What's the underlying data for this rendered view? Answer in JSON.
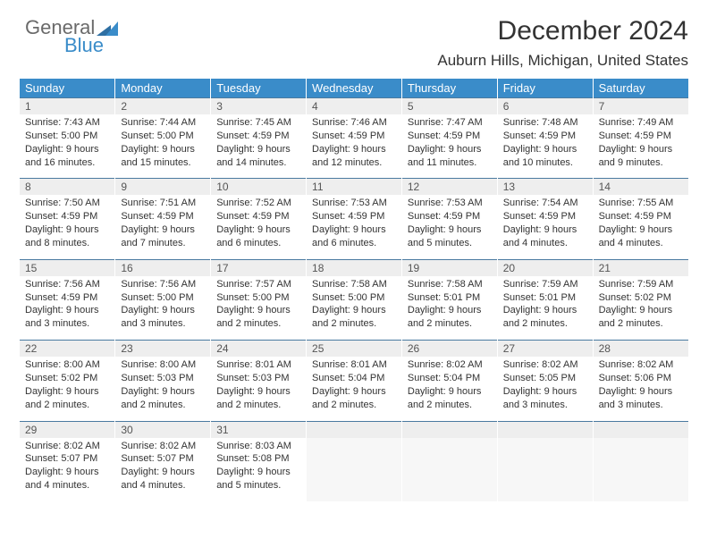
{
  "logo": {
    "text1": "General",
    "text2": "Blue",
    "accent": "#3a8cc9",
    "grey": "#6a6a6a"
  },
  "title": "December 2024",
  "location": "Auburn Hills, Michigan, United States",
  "header_bg": "#3a8cc9",
  "daynum_bg": "#eeeeee",
  "border_color": "#4a7aa0",
  "days": [
    "Sunday",
    "Monday",
    "Tuesday",
    "Wednesday",
    "Thursday",
    "Friday",
    "Saturday"
  ],
  "weeks": [
    {
      "nums": [
        "1",
        "2",
        "3",
        "4",
        "5",
        "6",
        "7"
      ],
      "cells": [
        {
          "sunrise": "Sunrise: 7:43 AM",
          "sunset": "Sunset: 5:00 PM",
          "d1": "Daylight: 9 hours",
          "d2": "and 16 minutes."
        },
        {
          "sunrise": "Sunrise: 7:44 AM",
          "sunset": "Sunset: 5:00 PM",
          "d1": "Daylight: 9 hours",
          "d2": "and 15 minutes."
        },
        {
          "sunrise": "Sunrise: 7:45 AM",
          "sunset": "Sunset: 4:59 PM",
          "d1": "Daylight: 9 hours",
          "d2": "and 14 minutes."
        },
        {
          "sunrise": "Sunrise: 7:46 AM",
          "sunset": "Sunset: 4:59 PM",
          "d1": "Daylight: 9 hours",
          "d2": "and 12 minutes."
        },
        {
          "sunrise": "Sunrise: 7:47 AM",
          "sunset": "Sunset: 4:59 PM",
          "d1": "Daylight: 9 hours",
          "d2": "and 11 minutes."
        },
        {
          "sunrise": "Sunrise: 7:48 AM",
          "sunset": "Sunset: 4:59 PM",
          "d1": "Daylight: 9 hours",
          "d2": "and 10 minutes."
        },
        {
          "sunrise": "Sunrise: 7:49 AM",
          "sunset": "Sunset: 4:59 PM",
          "d1": "Daylight: 9 hours",
          "d2": "and 9 minutes."
        }
      ]
    },
    {
      "nums": [
        "8",
        "9",
        "10",
        "11",
        "12",
        "13",
        "14"
      ],
      "cells": [
        {
          "sunrise": "Sunrise: 7:50 AM",
          "sunset": "Sunset: 4:59 PM",
          "d1": "Daylight: 9 hours",
          "d2": "and 8 minutes."
        },
        {
          "sunrise": "Sunrise: 7:51 AM",
          "sunset": "Sunset: 4:59 PM",
          "d1": "Daylight: 9 hours",
          "d2": "and 7 minutes."
        },
        {
          "sunrise": "Sunrise: 7:52 AM",
          "sunset": "Sunset: 4:59 PM",
          "d1": "Daylight: 9 hours",
          "d2": "and 6 minutes."
        },
        {
          "sunrise": "Sunrise: 7:53 AM",
          "sunset": "Sunset: 4:59 PM",
          "d1": "Daylight: 9 hours",
          "d2": "and 6 minutes."
        },
        {
          "sunrise": "Sunrise: 7:53 AM",
          "sunset": "Sunset: 4:59 PM",
          "d1": "Daylight: 9 hours",
          "d2": "and 5 minutes."
        },
        {
          "sunrise": "Sunrise: 7:54 AM",
          "sunset": "Sunset: 4:59 PM",
          "d1": "Daylight: 9 hours",
          "d2": "and 4 minutes."
        },
        {
          "sunrise": "Sunrise: 7:55 AM",
          "sunset": "Sunset: 4:59 PM",
          "d1": "Daylight: 9 hours",
          "d2": "and 4 minutes."
        }
      ]
    },
    {
      "nums": [
        "15",
        "16",
        "17",
        "18",
        "19",
        "20",
        "21"
      ],
      "cells": [
        {
          "sunrise": "Sunrise: 7:56 AM",
          "sunset": "Sunset: 4:59 PM",
          "d1": "Daylight: 9 hours",
          "d2": "and 3 minutes."
        },
        {
          "sunrise": "Sunrise: 7:56 AM",
          "sunset": "Sunset: 5:00 PM",
          "d1": "Daylight: 9 hours",
          "d2": "and 3 minutes."
        },
        {
          "sunrise": "Sunrise: 7:57 AM",
          "sunset": "Sunset: 5:00 PM",
          "d1": "Daylight: 9 hours",
          "d2": "and 2 minutes."
        },
        {
          "sunrise": "Sunrise: 7:58 AM",
          "sunset": "Sunset: 5:00 PM",
          "d1": "Daylight: 9 hours",
          "d2": "and 2 minutes."
        },
        {
          "sunrise": "Sunrise: 7:58 AM",
          "sunset": "Sunset: 5:01 PM",
          "d1": "Daylight: 9 hours",
          "d2": "and 2 minutes."
        },
        {
          "sunrise": "Sunrise: 7:59 AM",
          "sunset": "Sunset: 5:01 PM",
          "d1": "Daylight: 9 hours",
          "d2": "and 2 minutes."
        },
        {
          "sunrise": "Sunrise: 7:59 AM",
          "sunset": "Sunset: 5:02 PM",
          "d1": "Daylight: 9 hours",
          "d2": "and 2 minutes."
        }
      ]
    },
    {
      "nums": [
        "22",
        "23",
        "24",
        "25",
        "26",
        "27",
        "28"
      ],
      "cells": [
        {
          "sunrise": "Sunrise: 8:00 AM",
          "sunset": "Sunset: 5:02 PM",
          "d1": "Daylight: 9 hours",
          "d2": "and 2 minutes."
        },
        {
          "sunrise": "Sunrise: 8:00 AM",
          "sunset": "Sunset: 5:03 PM",
          "d1": "Daylight: 9 hours",
          "d2": "and 2 minutes."
        },
        {
          "sunrise": "Sunrise: 8:01 AM",
          "sunset": "Sunset: 5:03 PM",
          "d1": "Daylight: 9 hours",
          "d2": "and 2 minutes."
        },
        {
          "sunrise": "Sunrise: 8:01 AM",
          "sunset": "Sunset: 5:04 PM",
          "d1": "Daylight: 9 hours",
          "d2": "and 2 minutes."
        },
        {
          "sunrise": "Sunrise: 8:02 AM",
          "sunset": "Sunset: 5:04 PM",
          "d1": "Daylight: 9 hours",
          "d2": "and 2 minutes."
        },
        {
          "sunrise": "Sunrise: 8:02 AM",
          "sunset": "Sunset: 5:05 PM",
          "d1": "Daylight: 9 hours",
          "d2": "and 3 minutes."
        },
        {
          "sunrise": "Sunrise: 8:02 AM",
          "sunset": "Sunset: 5:06 PM",
          "d1": "Daylight: 9 hours",
          "d2": "and 3 minutes."
        }
      ]
    },
    {
      "nums": [
        "29",
        "30",
        "31",
        "",
        "",
        "",
        ""
      ],
      "cells": [
        {
          "sunrise": "Sunrise: 8:02 AM",
          "sunset": "Sunset: 5:07 PM",
          "d1": "Daylight: 9 hours",
          "d2": "and 4 minutes."
        },
        {
          "sunrise": "Sunrise: 8:02 AM",
          "sunset": "Sunset: 5:07 PM",
          "d1": "Daylight: 9 hours",
          "d2": "and 4 minutes."
        },
        {
          "sunrise": "Sunrise: 8:03 AM",
          "sunset": "Sunset: 5:08 PM",
          "d1": "Daylight: 9 hours",
          "d2": "and 5 minutes."
        },
        null,
        null,
        null,
        null
      ]
    }
  ]
}
